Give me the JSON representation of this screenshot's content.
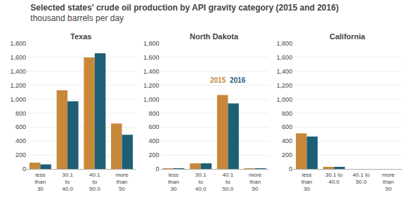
{
  "title": "Selected states' crude oil production by API gravity category (2015 and 2016)",
  "subtitle": "thousand barrels per day",
  "chart_data": [
    {
      "type": "bar",
      "title": "Texas",
      "categories": [
        "less\nthan\n30",
        "30.1\nto\n40.0",
        "40.1\nto\n50.0",
        "more\nthan\n50"
      ],
      "series": [
        {
          "name": "2015",
          "color": "#c8883a",
          "values": [
            90,
            1130,
            1600,
            650
          ]
        },
        {
          "name": "2016",
          "color": "#1f5f75",
          "values": [
            65,
            970,
            1660,
            490
          ]
        }
      ],
      "ylim": [
        0,
        1800
      ],
      "yticks": [
        0,
        200,
        400,
        600,
        800,
        {
          "value": 1000,
          "label": "1,000"
        },
        {
          "value": 1200,
          "label": "1,200"
        },
        {
          "value": 1400,
          "label": "1,400"
        },
        {
          "value": 1600,
          "label": "1,600"
        },
        {
          "value": 1800,
          "label": "1,800"
        }
      ],
      "grid": true
    },
    {
      "type": "bar",
      "title": "North Dakota",
      "categories": [
        "less\nthan\n30",
        "30.1\nto\n40.0",
        "40.1\nto\n50.0",
        "more\nthan\n50"
      ],
      "series": [
        {
          "name": "2015",
          "color": "#c8883a",
          "values": [
            10,
            80,
            1060,
            10
          ]
        },
        {
          "name": "2016",
          "color": "#1f5f75",
          "values": [
            10,
            80,
            940,
            10
          ]
        }
      ],
      "ylim": [
        0,
        1800
      ],
      "yticks": [
        0,
        200,
        400,
        600,
        800,
        {
          "value": 1000,
          "label": "1,000"
        },
        {
          "value": 1200,
          "label": "1,200"
        },
        {
          "value": 1400,
          "label": "1,400"
        },
        {
          "value": 1600,
          "label": "1,600"
        },
        {
          "value": 1800,
          "label": "1,800"
        }
      ],
      "grid": true,
      "annotations": [
        {
          "text": "2015",
          "category": "40.1\nto\n50.0",
          "y": 1200
        },
        {
          "text": "2016",
          "category": "40.1\nto\n50.0",
          "y": 1200
        }
      ]
    },
    {
      "type": "bar",
      "title": "California",
      "categories": [
        "less\nthan\n30",
        "30.1 to\n40.0",
        "40.1 to\n50.0",
        "more\nthan\n50"
      ],
      "series": [
        {
          "name": "2015",
          "color": "#c8883a",
          "values": [
            510,
            30,
            0,
            0
          ]
        },
        {
          "name": "2016",
          "color": "#1f5f75",
          "values": [
            465,
            30,
            0,
            0
          ]
        }
      ],
      "ylim": [
        0,
        1800
      ],
      "yticks": [
        0,
        200,
        400,
        600,
        800,
        {
          "value": 1000,
          "label": "1,000"
        },
        {
          "value": 1200,
          "label": "1,200"
        },
        {
          "value": 1400,
          "label": "1,400"
        },
        {
          "value": 1600,
          "label": "1,600"
        },
        {
          "value": 1800,
          "label": "1,800"
        }
      ],
      "grid": true
    }
  ]
}
